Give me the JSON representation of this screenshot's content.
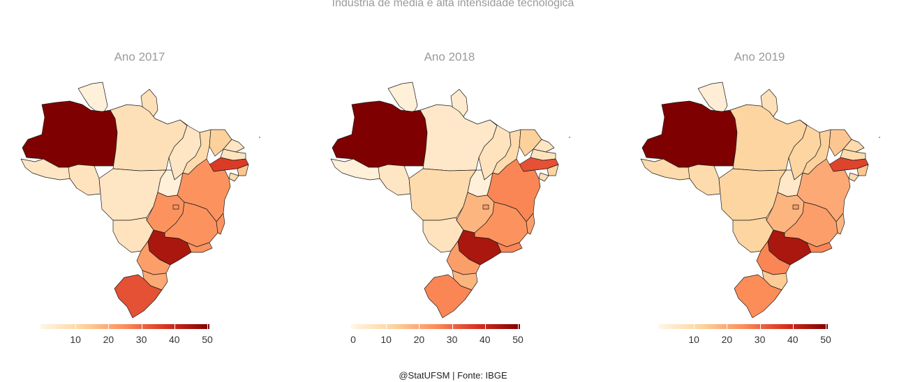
{
  "title": "Indústria de média e alta intensidade tecnológica",
  "caption": "@StatUFSM  |  Fonte: IBGE",
  "color_scale": {
    "low": "#fff5e6",
    "mid_low": "#fdd49e",
    "mid": "#fc8d59",
    "mid_high": "#d7301f",
    "high": "#7f0000",
    "domain": [
      0,
      50
    ]
  },
  "panels": [
    {
      "title": "Ano 2017",
      "legend_ticks": [
        "10",
        "20",
        "30",
        "40",
        "50"
      ],
      "values": {
        "AM": 50,
        "RR": 2,
        "AP": 8,
        "PA": 8,
        "AC": 6,
        "RO": 7,
        "TO": 2,
        "MA": 6,
        "PI": 10,
        "CE": 13,
        "RN": 6,
        "PB": 7,
        "PE": 36,
        "AL": 15,
        "SE": 10,
        "BA": 24,
        "MT": 6,
        "MS": 7,
        "GO": 24,
        "DF": 24,
        "MG": 24,
        "ES": 24,
        "RJ": 24,
        "SP": 44,
        "PR": 22,
        "SC": 20,
        "RS": 33
      }
    },
    {
      "title": "Ano 2018",
      "legend_ticks": [
        "0",
        "10",
        "20",
        "30",
        "40",
        "50"
      ],
      "values": {
        "AM": 50,
        "RR": 2,
        "AP": 4,
        "PA": 5,
        "AC": 2,
        "RO": 6,
        "TO": 2,
        "MA": 7,
        "PI": 10,
        "CE": 13,
        "RN": 6,
        "PB": 7,
        "PE": 33,
        "AL": 12,
        "SE": 8,
        "BA": 26,
        "MT": 10,
        "MS": 7,
        "GO": 18,
        "DF": 22,
        "MG": 24,
        "ES": 22,
        "RJ": 26,
        "SP": 44,
        "PR": 22,
        "SC": 18,
        "RS": 26
      }
    },
    {
      "title": "Ano 2019",
      "legend_ticks": [
        "10",
        "20",
        "30",
        "40",
        "50"
      ],
      "values": {
        "AM": 50,
        "RR": 3,
        "AP": 8,
        "PA": 12,
        "AC": 10,
        "RO": 10,
        "TO": 5,
        "MA": 12,
        "PI": 13,
        "CE": 15,
        "RN": 10,
        "PB": 10,
        "PE": 35,
        "AL": 15,
        "SE": 10,
        "BA": 20,
        "MT": 12,
        "MS": 12,
        "GO": 18,
        "DF": 22,
        "MG": 22,
        "ES": 18,
        "RJ": 26,
        "SP": 44,
        "PR": 26,
        "SC": 14,
        "RS": 25
      }
    }
  ]
}
